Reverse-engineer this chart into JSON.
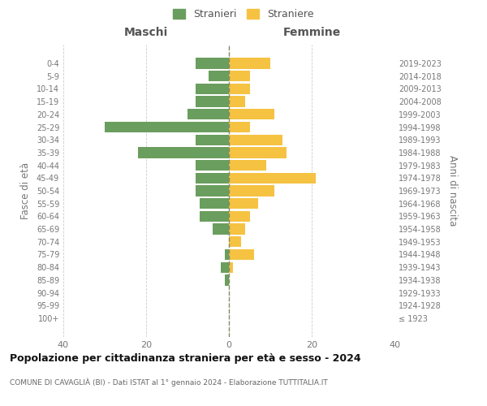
{
  "age_groups": [
    "100+",
    "95-99",
    "90-94",
    "85-89",
    "80-84",
    "75-79",
    "70-74",
    "65-69",
    "60-64",
    "55-59",
    "50-54",
    "45-49",
    "40-44",
    "35-39",
    "30-34",
    "25-29",
    "20-24",
    "15-19",
    "10-14",
    "5-9",
    "0-4"
  ],
  "birth_years": [
    "≤ 1923",
    "1924-1928",
    "1929-1933",
    "1934-1938",
    "1939-1943",
    "1944-1948",
    "1949-1953",
    "1954-1958",
    "1959-1963",
    "1964-1968",
    "1969-1973",
    "1974-1978",
    "1979-1983",
    "1984-1988",
    "1989-1993",
    "1994-1998",
    "1999-2003",
    "2004-2008",
    "2009-2013",
    "2014-2018",
    "2019-2023"
  ],
  "maschi": [
    0,
    0,
    0,
    1,
    2,
    1,
    0,
    4,
    7,
    7,
    8,
    8,
    8,
    22,
    8,
    30,
    10,
    8,
    8,
    5,
    8
  ],
  "femmine": [
    0,
    0,
    0,
    0,
    1,
    6,
    3,
    4,
    5,
    7,
    11,
    21,
    9,
    14,
    13,
    5,
    11,
    4,
    5,
    5,
    10
  ],
  "male_color": "#6a9e5e",
  "female_color": "#f5c242",
  "title": "Popolazione per cittadinanza straniera per età e sesso - 2024",
  "subtitle": "COMUNE DI CAVAGLIÀ (BI) - Dati ISTAT al 1° gennaio 2024 - Elaborazione TUTTITALIA.IT",
  "xlabel_left": "Maschi",
  "xlabel_right": "Femmine",
  "ylabel_left": "Fasce di età",
  "ylabel_right": "Anni di nascita",
  "legend_male": "Stranieri",
  "legend_female": "Straniere",
  "xlim": 40,
  "background_color": "#ffffff",
  "grid_color": "#cccccc",
  "bar_height": 0.85
}
